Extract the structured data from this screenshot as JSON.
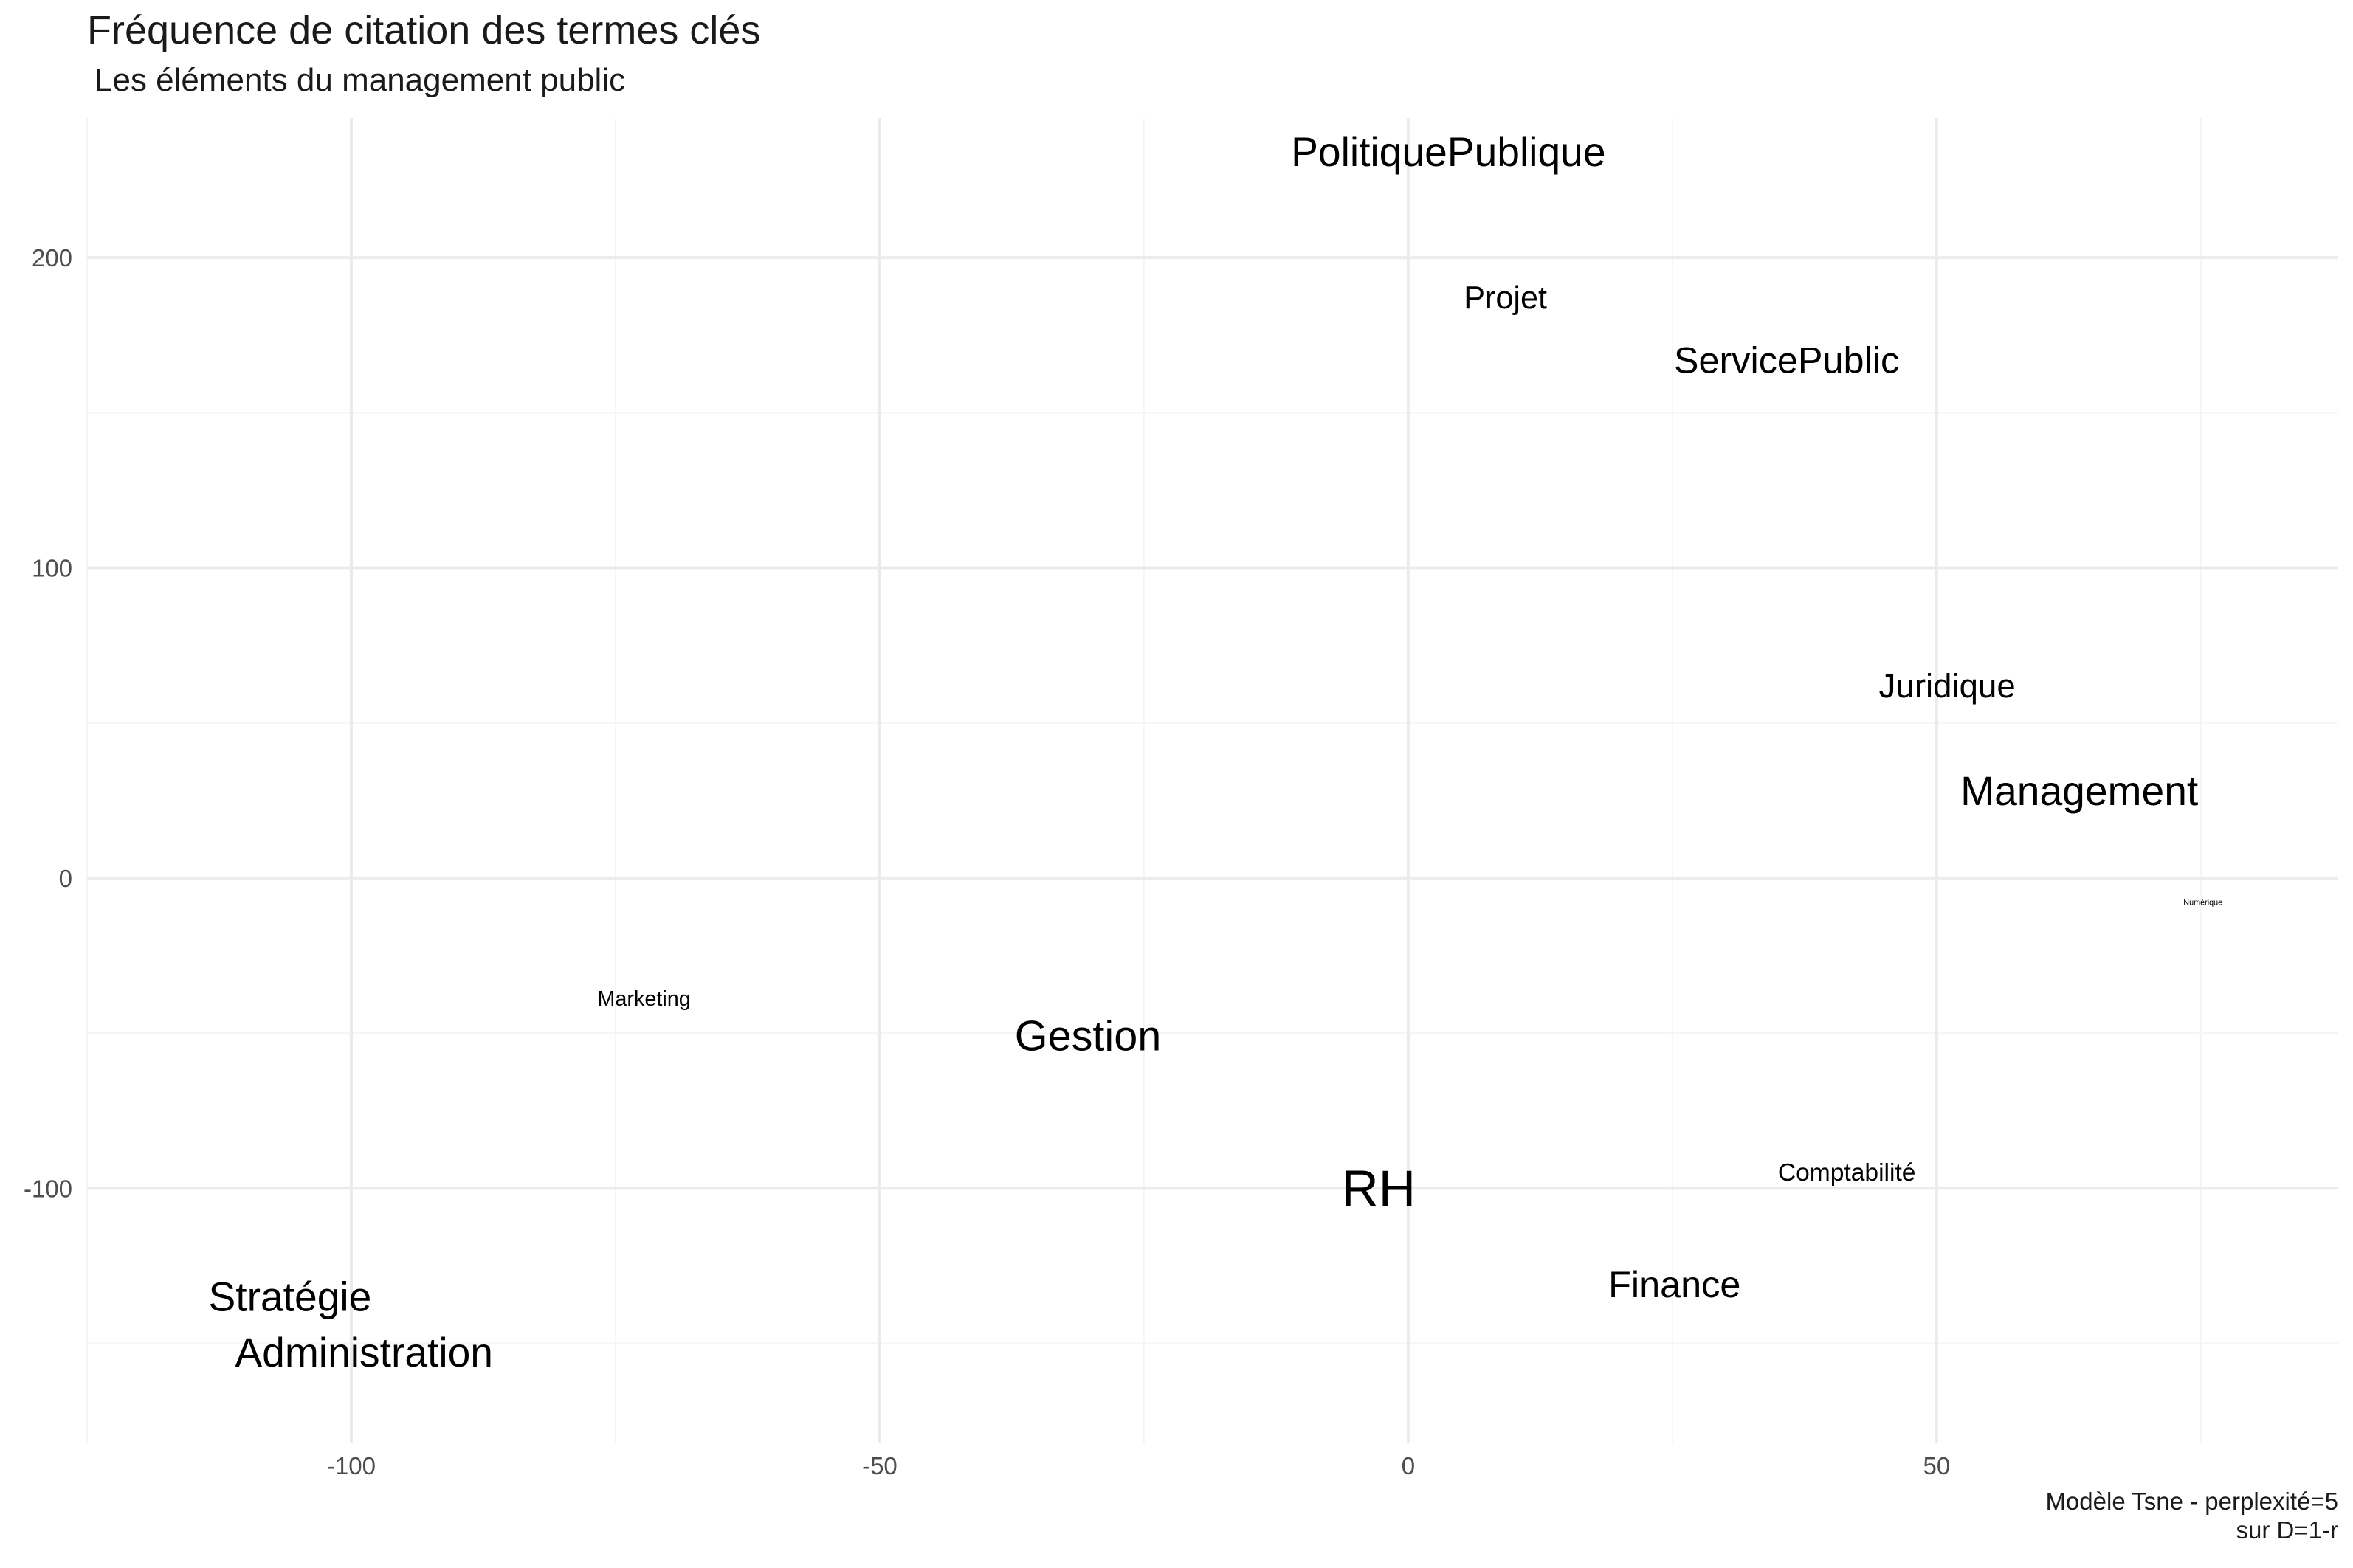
{
  "chart_data": {
    "type": "scatter",
    "title": "Fréquence de citation des termes clés",
    "subtitle": "Les éléments du management public",
    "caption": [
      "Modèle Tsne - perplexité=5",
      "sur D=1-r"
    ],
    "xlabel": "",
    "ylabel": "",
    "xlim": [
      -125,
      88
    ],
    "ylim": [
      -182,
      245
    ],
    "x_ticks": [
      -100,
      -50,
      0,
      50
    ],
    "y_ticks": [
      -100,
      0,
      100,
      200
    ],
    "grid": true,
    "legend": "none",
    "colors": {
      "text": "#000000",
      "grid_major": "#ebebeb",
      "grid_minor": "#f5f5f5",
      "tick_label": "#4d4d4d"
    },
    "points": [
      {
        "label": "PolitiquePublique",
        "x": 3.8,
        "y": 234,
        "size": 2.3
      },
      {
        "label": "Projet",
        "x": 9.2,
        "y": 187,
        "size": 1.8
      },
      {
        "label": "ServicePublic",
        "x": 35.8,
        "y": 167,
        "size": 2.1
      },
      {
        "label": "Juridique",
        "x": 51,
        "y": 62,
        "size": 1.9
      },
      {
        "label": "Management",
        "x": 63.5,
        "y": 28,
        "size": 2.3
      },
      {
        "label": "Numérique",
        "x": 75.2,
        "y": -8,
        "size": 0.45
      },
      {
        "label": "Marketing",
        "x": -72.3,
        "y": -39,
        "size": 1.2
      },
      {
        "label": "Gestion",
        "x": -30.3,
        "y": -51,
        "size": 2.4
      },
      {
        "label": "RH",
        "x": -2.8,
        "y": -100,
        "size": 2.9
      },
      {
        "label": "Comptabilité",
        "x": 41.5,
        "y": -95,
        "size": 1.4
      },
      {
        "label": "Finance",
        "x": 25.2,
        "y": -131,
        "size": 2.1
      },
      {
        "label": "Stratégie",
        "x": -105.8,
        "y": -135,
        "size": 2.3
      },
      {
        "label": "Administration",
        "x": -98.8,
        "y": -153,
        "size": 2.3
      }
    ]
  }
}
